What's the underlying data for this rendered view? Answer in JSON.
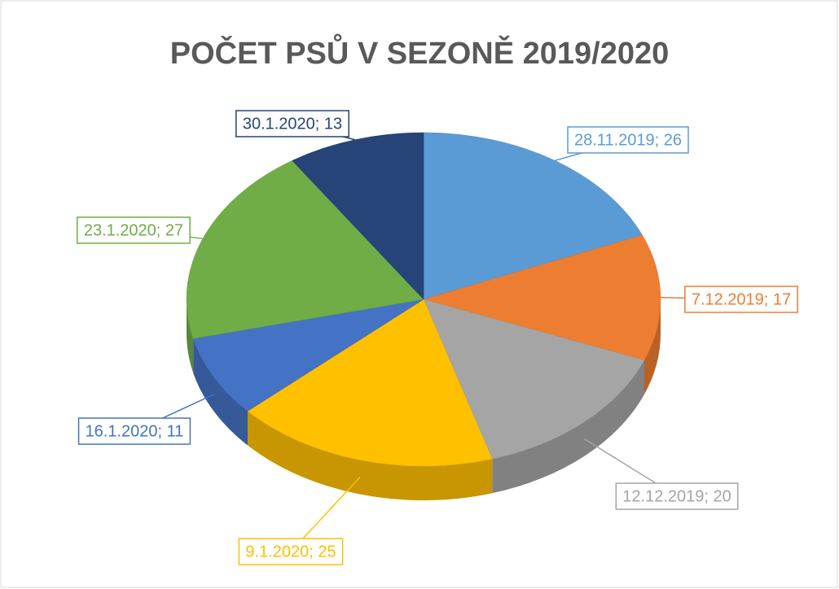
{
  "chart_data": {
    "type": "pie",
    "title": "POČET PSŮ V SEZONĚ 2019/2020",
    "values": [
      26,
      17,
      20,
      25,
      11,
      27,
      13
    ],
    "value_labels": [
      "28.11.2019; 26",
      "7.12.2019; 17",
      "12.12.2019; 20",
      "9.1.2020; 25",
      "16.1.2020; 11",
      "23.1.2020; 27",
      "30.1.2020; 13"
    ],
    "colors": [
      "#5b9bd5",
      "#ed7d31",
      "#a5a5a5",
      "#ffc000",
      "#4472c4",
      "#70ad47",
      "#264478"
    ]
  }
}
